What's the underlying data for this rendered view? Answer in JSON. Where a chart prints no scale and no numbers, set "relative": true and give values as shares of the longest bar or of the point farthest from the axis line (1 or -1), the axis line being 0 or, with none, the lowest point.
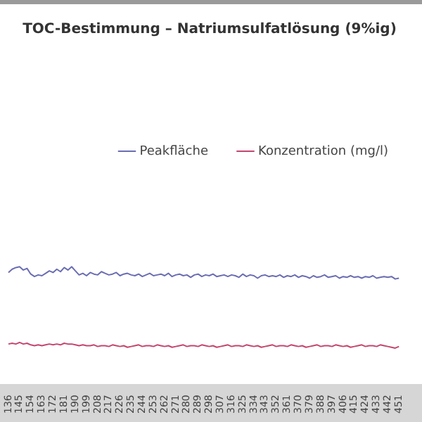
{
  "chart_data": {
    "type": "line",
    "title": "TOC-Bestimmung – Natriumsulfatlösung (9%ig)",
    "relative": true,
    "legend": "top",
    "grid": false,
    "marker": "none",
    "categories": [
      "136",
      null,
      null,
      "145",
      null,
      null,
      "154",
      null,
      null,
      "163",
      null,
      null,
      "172",
      null,
      null,
      "181",
      null,
      null,
      "190",
      null,
      null,
      "199",
      null,
      null,
      "208",
      null,
      null,
      "217",
      null,
      null,
      "226",
      null,
      null,
      "235",
      null,
      null,
      "244",
      null,
      null,
      "253",
      null,
      null,
      "262",
      null,
      null,
      "271",
      null,
      null,
      "280",
      null,
      null,
      "289",
      null,
      null,
      "298",
      null,
      null,
      "307",
      null,
      null,
      "316",
      null,
      null,
      "325",
      null,
      null,
      "334",
      null,
      null,
      "343",
      null,
      null,
      "352",
      null,
      null,
      "361",
      null,
      null,
      "370",
      null,
      null,
      "379",
      null,
      null,
      "388",
      null,
      null,
      "397",
      null,
      null,
      "406",
      null,
      null,
      "415",
      null,
      null,
      "424",
      null,
      null,
      "433",
      null,
      null,
      "442",
      null,
      null,
      "451"
    ],
    "series": [
      {
        "name": "Peakfläche",
        "color": "#6a6db3",
        "values": [
          0.93,
          0.97,
          0.99,
          1.0,
          0.96,
          0.98,
          0.91,
          0.88,
          0.9,
          0.89,
          0.92,
          0.95,
          0.93,
          0.97,
          0.94,
          0.99,
          0.96,
          1.0,
          0.95,
          0.9,
          0.92,
          0.89,
          0.93,
          0.91,
          0.9,
          0.94,
          0.92,
          0.9,
          0.91,
          0.93,
          0.89,
          0.91,
          0.92,
          0.9,
          0.89,
          0.91,
          0.88,
          0.9,
          0.92,
          0.89,
          0.9,
          0.91,
          0.89,
          0.92,
          0.88,
          0.9,
          0.91,
          0.89,
          0.9,
          0.87,
          0.9,
          0.91,
          0.88,
          0.9,
          0.89,
          0.91,
          0.88,
          0.89,
          0.9,
          0.88,
          0.9,
          0.89,
          0.87,
          0.91,
          0.88,
          0.9,
          0.89,
          0.86,
          0.89,
          0.9,
          0.88,
          0.89,
          0.88,
          0.9,
          0.87,
          0.89,
          0.88,
          0.9,
          0.87,
          0.89,
          0.88,
          0.86,
          0.89,
          0.87,
          0.88,
          0.9,
          0.87,
          0.88,
          0.89,
          0.86,
          0.88,
          0.87,
          0.89,
          0.87,
          0.88,
          0.86,
          0.88,
          0.87,
          0.89,
          0.86,
          0.87,
          0.88,
          0.87,
          0.88,
          0.85,
          0.86
        ]
      },
      {
        "name": "Konzentration (mg/l)",
        "color": "#c4466e",
        "values": [
          0.05,
          0.06,
          0.05,
          0.07,
          0.05,
          0.06,
          0.04,
          0.03,
          0.04,
          0.03,
          0.04,
          0.05,
          0.04,
          0.05,
          0.04,
          0.06,
          0.05,
          0.05,
          0.04,
          0.03,
          0.04,
          0.03,
          0.03,
          0.04,
          0.02,
          0.03,
          0.03,
          0.02,
          0.04,
          0.03,
          0.02,
          0.03,
          0.01,
          0.02,
          0.03,
          0.04,
          0.02,
          0.03,
          0.03,
          0.02,
          0.04,
          0.03,
          0.02,
          0.03,
          0.01,
          0.02,
          0.03,
          0.04,
          0.02,
          0.03,
          0.03,
          0.02,
          0.04,
          0.03,
          0.02,
          0.03,
          0.01,
          0.02,
          0.03,
          0.04,
          0.02,
          0.03,
          0.03,
          0.02,
          0.04,
          0.03,
          0.02,
          0.03,
          0.01,
          0.02,
          0.03,
          0.04,
          0.02,
          0.03,
          0.03,
          0.02,
          0.04,
          0.03,
          0.02,
          0.03,
          0.01,
          0.02,
          0.03,
          0.04,
          0.02,
          0.03,
          0.03,
          0.02,
          0.04,
          0.03,
          0.02,
          0.03,
          0.01,
          0.02,
          0.03,
          0.04,
          0.02,
          0.03,
          0.03,
          0.02,
          0.04,
          0.03,
          0.02,
          0.01,
          0.0,
          0.02
        ]
      }
    ]
  }
}
